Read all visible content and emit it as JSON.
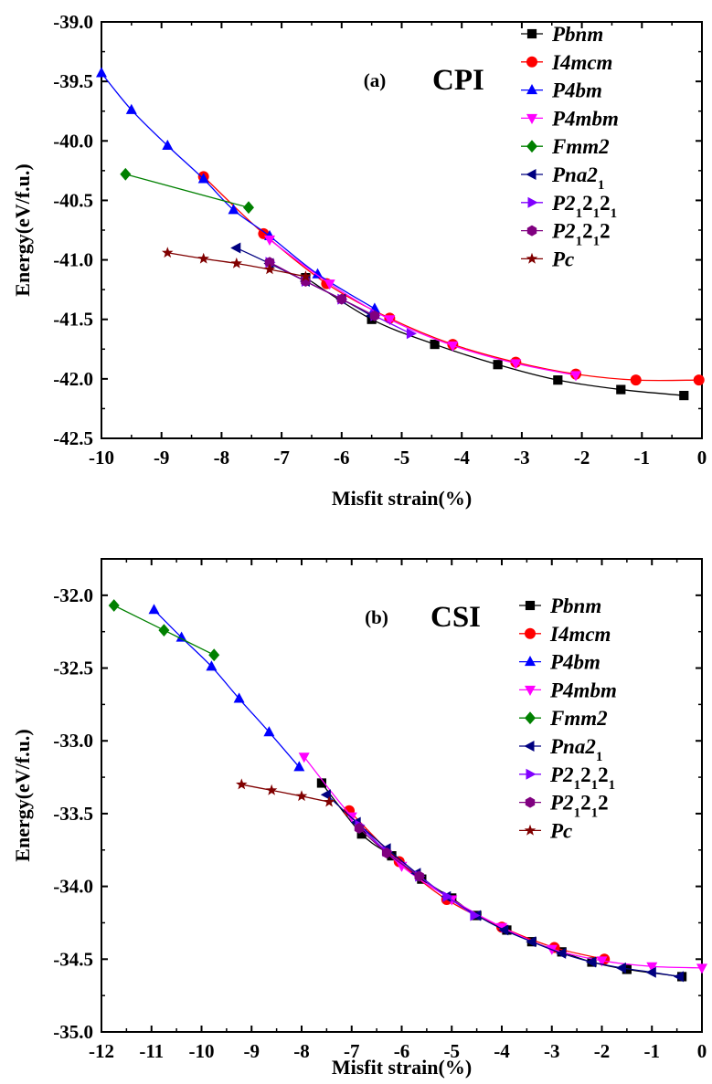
{
  "chart_data": [
    {
      "type": "line",
      "panel_label": "(a)",
      "panel_name": "CPI",
      "xlabel": "Misfit strain(%)",
      "ylabel": "Energy(eV/f.u.)",
      "xlim": [
        -10,
        0
      ],
      "ylim": [
        -42.5,
        -39.0
      ],
      "xticks": [
        -10,
        -9,
        -8,
        -7,
        -6,
        -5,
        -4,
        -3,
        -2,
        -1,
        0
      ],
      "yticks": [
        -39.0,
        -39.5,
        -40.0,
        -40.5,
        -41.0,
        -41.5,
        -42.0,
        -42.5
      ],
      "legend_position": "top-right",
      "series": [
        {
          "name": "Pbnm",
          "display": [
            {
              "t": "Pbnm",
              "s": null
            }
          ],
          "color": "#000000",
          "marker": "square",
          "x": [
            -6.6,
            -5.5,
            -4.45,
            -3.4,
            -2.4,
            -1.35,
            -0.3
          ],
          "y": [
            -41.15,
            -41.5,
            -41.71,
            -41.88,
            -42.01,
            -42.09,
            -42.14
          ]
        },
        {
          "name": "I4mcm",
          "display": [
            {
              "t": "I4mcm",
              "s": null
            }
          ],
          "color": "#ff0000",
          "marker": "circle",
          "x": [
            -8.3,
            -7.3,
            -6.25,
            -5.2,
            -4.15,
            -3.1,
            -2.1,
            -1.1,
            -0.05
          ],
          "y": [
            -40.3,
            -40.78,
            -41.2,
            -41.49,
            -41.71,
            -41.86,
            -41.96,
            -42.01,
            -42.01
          ]
        },
        {
          "name": "P4bm",
          "display": [
            {
              "t": "P4bm",
              "s": null
            }
          ],
          "color": "#0000ff",
          "marker": "triangle-up",
          "x": [
            -10.0,
            -9.5,
            -8.9,
            -8.3,
            -7.8,
            -7.2,
            -6.4,
            -5.45
          ],
          "y": [
            -39.43,
            -39.74,
            -40.04,
            -40.32,
            -40.58,
            -40.8,
            -41.12,
            -41.41
          ]
        },
        {
          "name": "P4mbm",
          "display": [
            {
              "t": "P4mbm",
              "s": null
            }
          ],
          "color": "#ff00ff",
          "marker": "triangle-down",
          "x": [
            -7.2,
            -6.2,
            -5.2,
            -4.15,
            -3.1,
            -2.1
          ],
          "y": [
            -40.83,
            -41.2,
            -41.5,
            -41.72,
            -41.87,
            -41.97
          ]
        },
        {
          "name": "Fmm2",
          "display": [
            {
              "t": "Fmm2",
              "s": null
            }
          ],
          "color": "#008000",
          "marker": "diamond",
          "x": [
            -9.6,
            -7.55
          ],
          "y": [
            -40.28,
            -40.56
          ]
        },
        {
          "name": "Pna21",
          "display": [
            {
              "t": "Pna2",
              "s": null
            },
            {
              "t": "1",
              "s": "sub"
            }
          ],
          "color": "#000080",
          "marker": "triangle-left",
          "x": [
            -7.75,
            -7.2,
            -6.6,
            -6.0,
            -5.5
          ],
          "y": [
            -40.9,
            -41.03,
            -41.18,
            -41.33,
            -41.47
          ]
        },
        {
          "name": "P212121",
          "display": [
            {
              "t": "P2",
              "s": null
            },
            {
              "t": "1",
              "s": "sub"
            },
            {
              "t": "2",
              "s": null
            },
            {
              "t": "1",
              "s": "sub"
            },
            {
              "t": "2",
              "s": null
            },
            {
              "t": "1",
              "s": "sub"
            }
          ],
          "color": "#8000ff",
          "marker": "triangle-right",
          "x": [
            -7.2,
            -6.6,
            -6.0,
            -5.45,
            -4.85
          ],
          "y": [
            -41.02,
            -41.18,
            -41.33,
            -41.47,
            -41.62
          ]
        },
        {
          "name": "P21212",
          "display": [
            {
              "t": "P2",
              "s": null
            },
            {
              "t": "1",
              "s": "sub"
            },
            {
              "t": "2",
              "s": null
            },
            {
              "t": "1",
              "s": "sub"
            },
            {
              "t": "2",
              "s": null
            }
          ],
          "color": "#800080",
          "marker": "hexagon",
          "x": [
            -7.2,
            -6.6,
            -6.0,
            -5.45
          ],
          "y": [
            -41.02,
            -41.18,
            -41.33,
            -41.47
          ]
        },
        {
          "name": "Pc",
          "display": [
            {
              "t": "Pc",
              "s": null
            }
          ],
          "color": "#800000",
          "marker": "star",
          "x": [
            -8.9,
            -8.3,
            -7.75,
            -7.2,
            -6.6
          ],
          "y": [
            -40.94,
            -40.99,
            -41.03,
            -41.08,
            -41.14
          ]
        }
      ]
    },
    {
      "type": "line",
      "panel_label": "(b)",
      "panel_name": "CSI",
      "xlabel": "Misfit strain(%)",
      "ylabel": "Energy(eV/f.u.)",
      "xlim": [
        -12,
        0
      ],
      "ylim": [
        -35.0,
        -31.75
      ],
      "xticks": [
        -12,
        -11,
        -10,
        -9,
        -8,
        -7,
        -6,
        -5,
        -4,
        -3,
        -2,
        -1,
        0
      ],
      "yticks": [
        -32.0,
        -32.5,
        -33.0,
        -33.5,
        -34.0,
        -34.5,
        -35.0
      ],
      "legend_position": "top-right",
      "series": [
        {
          "name": "Pbnm",
          "display": [
            {
              "t": "Pbnm",
              "s": null
            }
          ],
          "color": "#000000",
          "marker": "square",
          "x": [
            -7.6,
            -6.8,
            -6.2,
            -5.6,
            -5.0,
            -4.5,
            -3.9,
            -3.4,
            -2.8,
            -2.2,
            -1.5,
            -0.4
          ],
          "y": [
            -33.29,
            -33.64,
            -33.79,
            -33.95,
            -34.08,
            -34.2,
            -34.3,
            -34.38,
            -34.45,
            -34.52,
            -34.57,
            -34.62
          ]
        },
        {
          "name": "I4mcm",
          "display": [
            {
              "t": "I4mcm",
              "s": null
            }
          ],
          "color": "#ff0000",
          "marker": "circle",
          "x": [
            -7.05,
            -6.05,
            -5.1,
            -4.0,
            -2.95,
            -1.95
          ],
          "y": [
            -33.48,
            -33.83,
            -34.09,
            -34.28,
            -34.42,
            -34.5
          ]
        },
        {
          "name": "P4bm",
          "display": [
            {
              "t": "P4bm",
              "s": null
            }
          ],
          "color": "#0000ff",
          "marker": "triangle-up",
          "x": [
            -10.95,
            -10.4,
            -9.8,
            -9.25,
            -8.65,
            -8.05
          ],
          "y": [
            -32.1,
            -32.29,
            -32.49,
            -32.71,
            -32.94,
            -33.18
          ]
        },
        {
          "name": "P4mbm",
          "display": [
            {
              "t": "P4mbm",
              "s": null
            }
          ],
          "color": "#ff00ff",
          "marker": "triangle-down",
          "x": [
            -7.95,
            -7.0,
            -6.0,
            -5.0,
            -4.0,
            -3.0,
            -2.0,
            -1.0,
            0.0
          ],
          "y": [
            -33.11,
            -33.52,
            -33.86,
            -34.09,
            -34.28,
            -34.43,
            -34.51,
            -34.55,
            -34.56
          ]
        },
        {
          "name": "Fmm2",
          "display": [
            {
              "t": "Fmm2",
              "s": null
            }
          ],
          "color": "#008000",
          "marker": "diamond",
          "x": [
            -11.75,
            -10.75,
            -9.75
          ],
          "y": [
            -32.07,
            -32.24,
            -32.41
          ]
        },
        {
          "name": "Pna21",
          "display": [
            {
              "t": "Pna2",
              "s": null
            },
            {
              "t": "1",
              "s": "sub"
            }
          ],
          "color": "#000080",
          "marker": "triangle-left",
          "x": [
            -7.5,
            -6.9,
            -6.3,
            -5.7,
            -5.1,
            -4.5,
            -3.95,
            -3.4,
            -2.8,
            -2.2,
            -1.6,
            -1.0,
            -0.45
          ],
          "y": [
            -33.37,
            -33.56,
            -33.74,
            -33.91,
            -34.07,
            -34.2,
            -34.3,
            -34.38,
            -34.46,
            -34.52,
            -34.56,
            -34.59,
            -34.62
          ]
        },
        {
          "name": "P212121",
          "display": [
            {
              "t": "P2",
              "s": null
            },
            {
              "t": "1",
              "s": "sub"
            },
            {
              "t": "2",
              "s": null
            },
            {
              "t": "1",
              "s": "sub"
            },
            {
              "t": "2",
              "s": null
            },
            {
              "t": "1",
              "s": "sub"
            }
          ],
          "color": "#8000ff",
          "marker": "triangle-right",
          "x": [
            -6.85,
            -6.3,
            -5.65,
            -5.1,
            -4.55
          ],
          "y": [
            -33.58,
            -33.76,
            -33.93,
            -34.07,
            -34.2
          ]
        },
        {
          "name": "P21212",
          "display": [
            {
              "t": "P2",
              "s": null
            },
            {
              "t": "1",
              "s": "sub"
            },
            {
              "t": "2",
              "s": null
            },
            {
              "t": "1",
              "s": "sub"
            },
            {
              "t": "2",
              "s": null
            }
          ],
          "color": "#800080",
          "marker": "hexagon",
          "x": [
            -6.85,
            -6.3,
            -5.65
          ],
          "y": [
            -33.6,
            -33.77,
            -33.93
          ]
        },
        {
          "name": "Pc",
          "display": [
            {
              "t": "Pc",
              "s": null
            }
          ],
          "color": "#800000",
          "marker": "star",
          "x": [
            -9.2,
            -8.6,
            -8.0,
            -7.45
          ],
          "y": [
            -33.3,
            -33.34,
            -33.38,
            -33.42
          ]
        }
      ]
    }
  ]
}
